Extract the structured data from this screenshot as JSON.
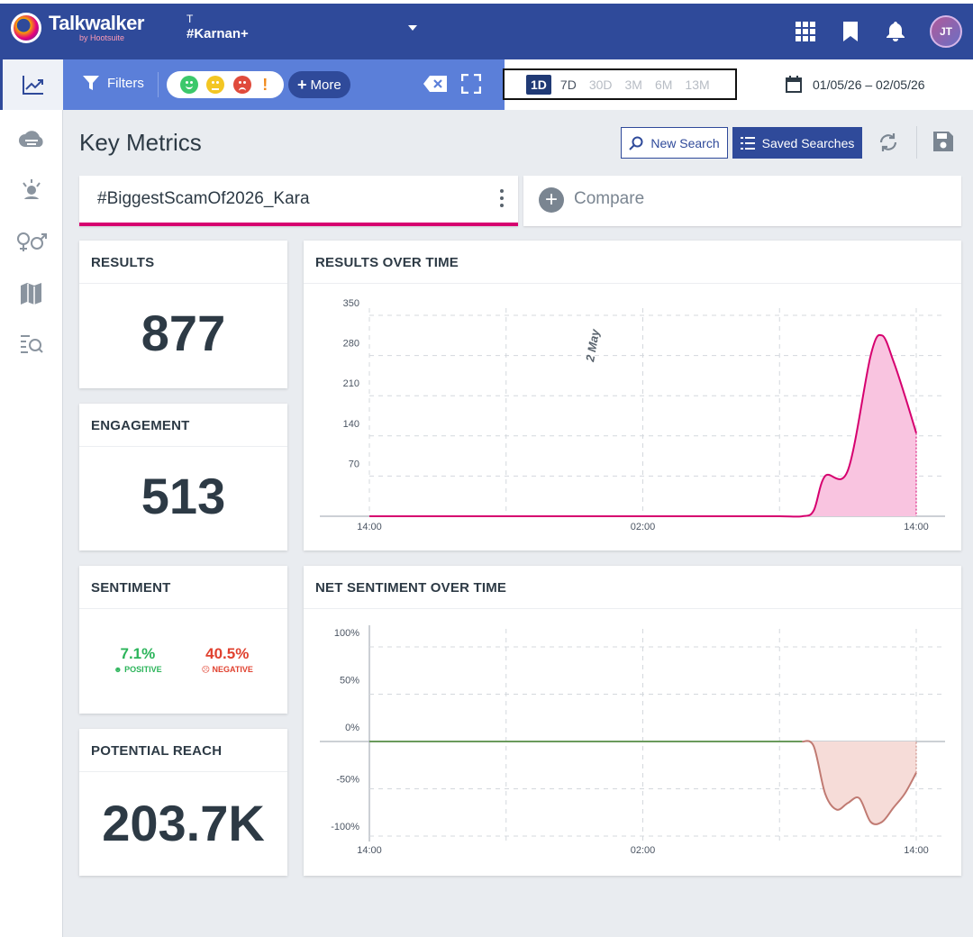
{
  "header": {
    "brand": "Talkwalker",
    "brand_sub": "by Hootsuite",
    "project_letter": "T",
    "project_name": "#Karnan+",
    "avatar_initials": "JT"
  },
  "filterbar": {
    "filters_label": "Filters",
    "more_label": "More"
  },
  "periods": [
    {
      "label": "1D",
      "state": "active"
    },
    {
      "label": "7D",
      "state": "normal"
    },
    {
      "label": "30D",
      "state": "disabled"
    },
    {
      "label": "3M",
      "state": "disabled"
    },
    {
      "label": "6M",
      "state": "disabled"
    },
    {
      "label": "13M",
      "state": "disabled"
    }
  ],
  "date_range": "01/05/26 – 02/05/26",
  "page": {
    "title": "Key Metrics",
    "new_search": "New Search",
    "saved_searches": "Saved Searches"
  },
  "query": {
    "name": "#BiggestScamOf2026_Kara",
    "compare_label": "Compare"
  },
  "metrics": {
    "results_title": "RESULTS",
    "results_value": "877",
    "engagement_title": "ENGAGEMENT",
    "engagement_value": "513",
    "sentiment_title": "SENTIMENT",
    "positive_value": "7.1%",
    "positive_label": "POSITIVE",
    "negative_value": "40.5%",
    "negative_label": "NEGATIVE",
    "reach_title": "POTENTIAL REACH",
    "reach_value": "203.7K"
  },
  "chart_data": [
    {
      "type": "area",
      "title": "RESULTS OVER TIME",
      "x_ticks": [
        "14:00",
        "02:00",
        "14:00"
      ],
      "y_ticks": [
        70,
        140,
        210,
        280,
        350
      ],
      "ylim": [
        0,
        350
      ],
      "annotation": "2 May",
      "color": "#d6006f",
      "fill": "#f9c4e0",
      "x": [
        0,
        2,
        4,
        6,
        8,
        10,
        12,
        14,
        16,
        18,
        19,
        19.5,
        20,
        21,
        22,
        22.5,
        23,
        23.5,
        24
      ],
      "values": [
        0,
        0,
        0,
        0,
        0,
        0,
        0,
        0,
        0,
        0,
        0,
        10,
        70,
        80,
        280,
        315,
        270,
        210,
        145
      ]
    },
    {
      "type": "area",
      "title": "NET SENTIMENT OVER TIME",
      "x_ticks": [
        "14:00",
        "02:00",
        "14:00"
      ],
      "y_ticks": [
        "100%",
        "50%",
        "0%",
        "-50%",
        "-100%"
      ],
      "ylim": [
        -100,
        100
      ],
      "color_pos": "#6a9a5c",
      "color_neg": "#c07a72",
      "fill": "#f6dcd8",
      "x": [
        0,
        2,
        4,
        6,
        8,
        10,
        12,
        14,
        16,
        18,
        19,
        19.5,
        20,
        20.5,
        21,
        21.5,
        22,
        22.5,
        23,
        23.5,
        24
      ],
      "values": [
        0,
        0,
        0,
        0,
        0,
        0,
        0,
        0,
        0,
        0,
        0,
        -5,
        -55,
        -72,
        -65,
        -60,
        -85,
        -85,
        -70,
        -55,
        -33
      ]
    }
  ]
}
